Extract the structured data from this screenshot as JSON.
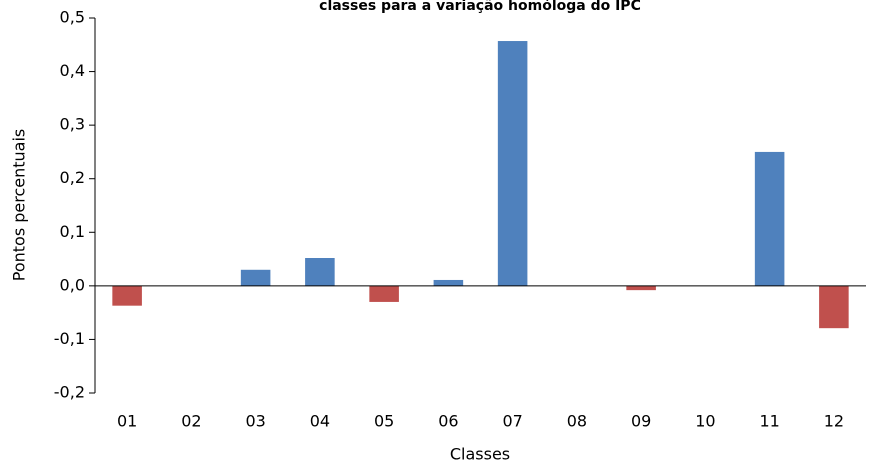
{
  "chart_data": {
    "type": "bar",
    "title": "classes para a variação homóloga do IPC",
    "x_label": "Classes",
    "y_label": "Pontos percentuais",
    "categories": [
      "01",
      "02",
      "03",
      "04",
      "05",
      "06",
      "07",
      "08",
      "09",
      "10",
      "11",
      "12"
    ],
    "values": [
      -0.037,
      0,
      0.03,
      0.052,
      -0.03,
      0.011,
      0.457,
      0,
      -0.008,
      0,
      0.25,
      -0.079
    ],
    "color": "#4f81bd",
    "negative_color": "#c0504d",
    "ylim": [
      -0.2,
      0.5
    ],
    "yticks": [
      {
        "value": -0.2,
        "label": "-0,2"
      },
      {
        "value": -0.1,
        "label": "-0,1"
      },
      {
        "value": 0,
        "label": "0,0"
      },
      {
        "value": 0.1,
        "label": "0,1"
      },
      {
        "value": 0.2,
        "label": "0,2"
      },
      {
        "value": 0.3,
        "label": "0,3"
      },
      {
        "value": 0.4,
        "label": "0,4"
      },
      {
        "value": 0.5,
        "label": "0,5"
      }
    ],
    "grid": false
  }
}
